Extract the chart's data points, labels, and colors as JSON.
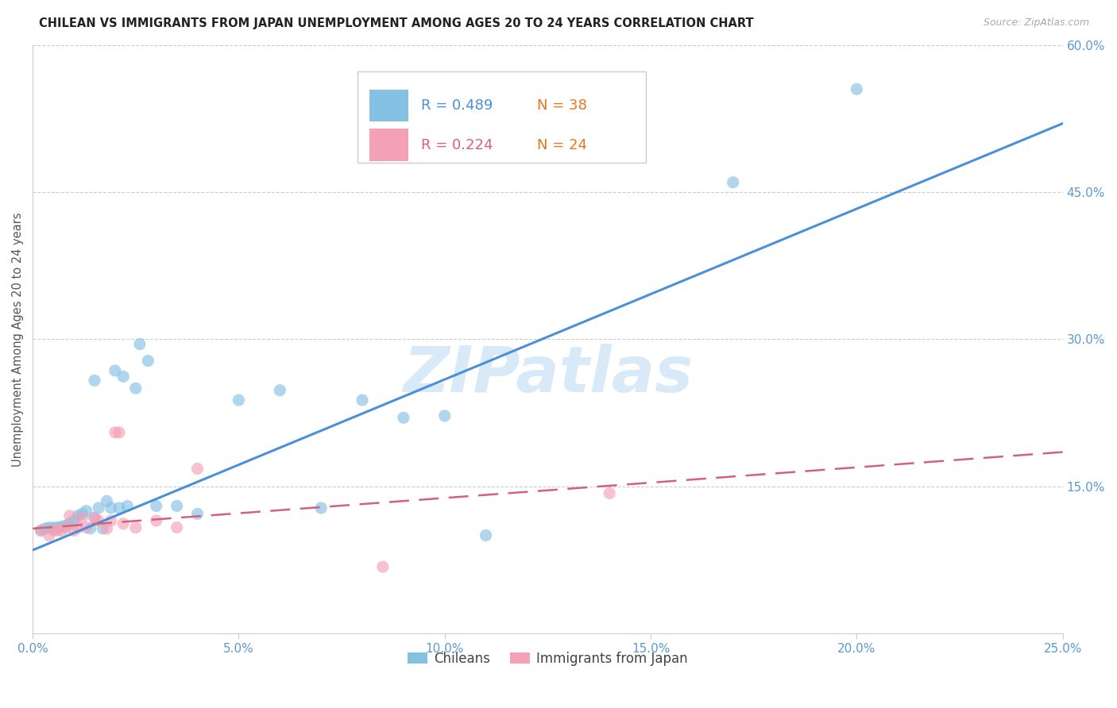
{
  "title": "CHILEAN VS IMMIGRANTS FROM JAPAN UNEMPLOYMENT AMONG AGES 20 TO 24 YEARS CORRELATION CHART",
  "source": "Source: ZipAtlas.com",
  "ylabel": "Unemployment Among Ages 20 to 24 years",
  "xlim": [
    0.0,
    0.25
  ],
  "ylim": [
    0.0,
    0.6
  ],
  "xtick_vals": [
    0.0,
    0.05,
    0.1,
    0.15,
    0.2,
    0.25
  ],
  "ytick_vals": [
    0.15,
    0.3,
    0.45,
    0.6
  ],
  "ytick_labels": [
    "15.0%",
    "30.0%",
    "45.0%",
    "60.0%"
  ],
  "xtick_labels": [
    "0.0%",
    "5.0%",
    "10.0%",
    "15.0%",
    "20.0%",
    "25.0%"
  ],
  "chilean_color": "#85c1e3",
  "japan_color": "#f4a0b5",
  "regression_blue_color": "#4a90d9",
  "regression_pink_color": "#d46080",
  "tick_color": "#5a9ad4",
  "chilean_R": 0.489,
  "chilean_N": 38,
  "japan_R": 0.224,
  "japan_N": 24,
  "watermark": "ZIPatlas",
  "blue_line_x": [
    0.0,
    0.25
  ],
  "blue_line_y": [
    0.085,
    0.52
  ],
  "pink_line_x": [
    0.0,
    0.25
  ],
  "pink_line_y": [
    0.107,
    0.185
  ],
  "chilean_x": [
    0.002,
    0.003,
    0.004,
    0.005,
    0.006,
    0.007,
    0.008,
    0.009,
    0.01,
    0.011,
    0.012,
    0.013,
    0.014,
    0.015,
    0.016,
    0.017,
    0.018,
    0.019,
    0.02,
    0.022,
    0.025,
    0.03,
    0.035,
    0.04,
    0.05,
    0.06,
    0.07,
    0.08,
    0.09,
    0.1,
    0.11,
    0.015,
    0.021,
    0.023,
    0.026,
    0.028,
    0.17,
    0.2
  ],
  "chilean_y": [
    0.105,
    0.107,
    0.108,
    0.108,
    0.108,
    0.109,
    0.11,
    0.112,
    0.115,
    0.12,
    0.122,
    0.125,
    0.107,
    0.118,
    0.128,
    0.107,
    0.135,
    0.128,
    0.268,
    0.262,
    0.25,
    0.13,
    0.13,
    0.122,
    0.238,
    0.248,
    0.128,
    0.238,
    0.22,
    0.222,
    0.1,
    0.258,
    0.128,
    0.13,
    0.295,
    0.278,
    0.46,
    0.555
  ],
  "japan_x": [
    0.002,
    0.004,
    0.005,
    0.006,
    0.007,
    0.008,
    0.009,
    0.01,
    0.011,
    0.012,
    0.013,
    0.015,
    0.016,
    0.018,
    0.019,
    0.02,
    0.021,
    0.022,
    0.025,
    0.03,
    0.035,
    0.085,
    0.14,
    0.04
  ],
  "japan_y": [
    0.105,
    0.1,
    0.105,
    0.105,
    0.105,
    0.108,
    0.12,
    0.105,
    0.108,
    0.118,
    0.108,
    0.118,
    0.115,
    0.107,
    0.115,
    0.205,
    0.205,
    0.112,
    0.108,
    0.115,
    0.108,
    0.068,
    0.143,
    0.168
  ]
}
